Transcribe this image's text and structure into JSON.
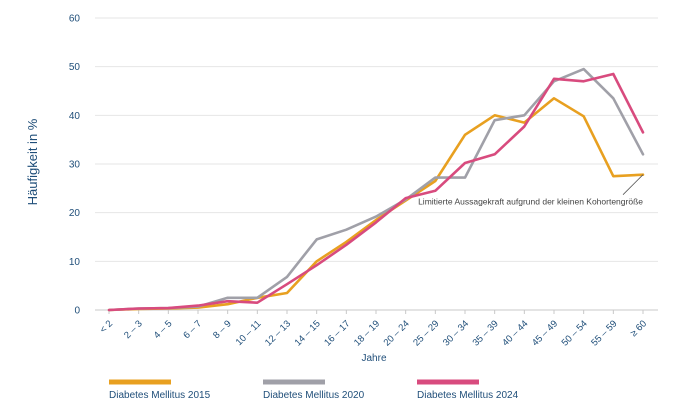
{
  "chart_data": {
    "type": "line",
    "ylabel": "Häufigkeit in %",
    "xlabel": "Jahre",
    "ylim": [
      0,
      60
    ],
    "yticks": [
      0,
      10,
      20,
      30,
      40,
      50,
      60
    ],
    "grid": true,
    "legend_position": "bottom",
    "categories": [
      "< 2",
      "2 – 3",
      "4 – 5",
      "6 – 7",
      "8 – 9",
      "10 – 11",
      "12 – 13",
      "14 – 15",
      "16 – 17",
      "18 – 19",
      "20 – 24",
      "25 – 29",
      "30 – 34",
      "35 – 39",
      "40 – 44",
      "45 – 49",
      "50 – 54",
      "55 – 59",
      "≥ 60"
    ],
    "series": [
      {
        "name": "Diabetes Mellitus 2015",
        "color": "#e8a020",
        "values": [
          0,
          0.2,
          0.3,
          0.5,
          1.2,
          2.5,
          3.5,
          10,
          14,
          18.5,
          22.5,
          26.5,
          36,
          40,
          38.5,
          43.5,
          39.8,
          27.5,
          27.8
        ]
      },
      {
        "name": "Diabetes Mellitus 2020",
        "color": "#a0a0a8",
        "values": [
          0,
          0.3,
          0.4,
          0.7,
          2.5,
          2.5,
          6.8,
          14.5,
          16.5,
          19.2,
          22.7,
          27.2,
          27.2,
          39,
          40,
          47,
          49.5,
          43.5,
          32
        ]
      },
      {
        "name": "Diabetes Mellitus 2024",
        "color": "#d84b7e",
        "values": [
          0,
          0.3,
          0.4,
          0.9,
          1.8,
          1.5,
          5.3,
          9.2,
          13.4,
          18,
          23,
          24.5,
          30.2,
          32,
          37.7,
          47.5,
          47,
          48.5,
          36.5
        ]
      }
    ],
    "annotations": [
      {
        "text": "Limitierte Aussagekraft aufgrund der kleinen Kohortengröße",
        "x": "≥ 60",
        "y": 27.8
      }
    ]
  }
}
